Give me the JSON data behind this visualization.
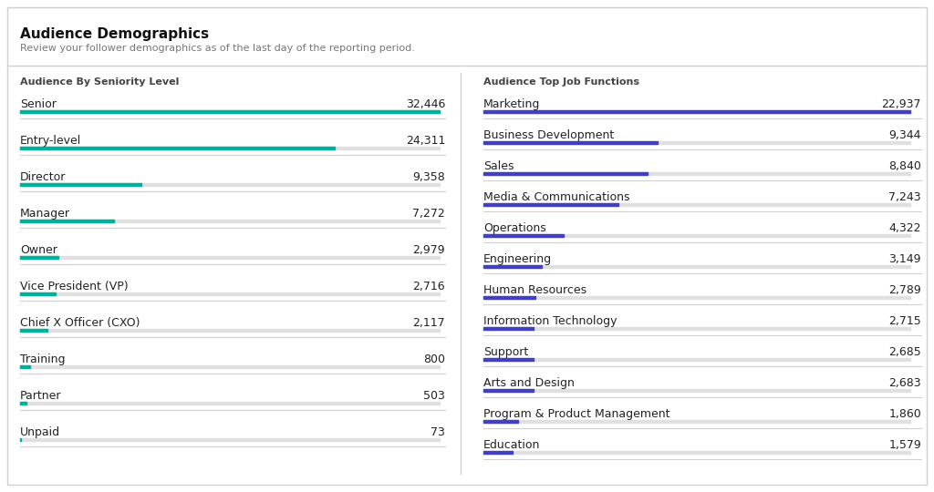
{
  "title": "Audience Demographics",
  "subtitle": "Review your follower demographics as of the last day of the reporting period.",
  "bg_color": "#ffffff",
  "border_color": "#d0d0d0",
  "left_section_title": "Audience By Seniority Level",
  "right_section_title": "Audience Top Job Functions",
  "left_bar_color": "#00b09b",
  "right_bar_color": "#4040c0",
  "bar_bg_color": "#e0e0e0",
  "label_color": "#222222",
  "value_color": "#222222",
  "section_title_color": "#444444",
  "title_color": "#111111",
  "subtitle_color": "#777777",
  "left_items": [
    {
      "label": "Senior",
      "value": 32446
    },
    {
      "label": "Entry-level",
      "value": 24311
    },
    {
      "label": "Director",
      "value": 9358
    },
    {
      "label": "Manager",
      "value": 7272
    },
    {
      "label": "Owner",
      "value": 2979
    },
    {
      "label": "Vice President (VP)",
      "value": 2716
    },
    {
      "label": "Chief X Officer (CXO)",
      "value": 2117
    },
    {
      "label": "Training",
      "value": 800
    },
    {
      "label": "Partner",
      "value": 503
    },
    {
      "label": "Unpaid",
      "value": 73
    }
  ],
  "right_items": [
    {
      "label": "Marketing",
      "value": 22937
    },
    {
      "label": "Business Development",
      "value": 9344
    },
    {
      "label": "Sales",
      "value": 8840
    },
    {
      "label": "Media & Communications",
      "value": 7243
    },
    {
      "label": "Operations",
      "value": 4322
    },
    {
      "label": "Engineering",
      "value": 3149
    },
    {
      "label": "Human Resources",
      "value": 2789
    },
    {
      "label": "Information Technology",
      "value": 2715
    },
    {
      "label": "Support",
      "value": 2685
    },
    {
      "label": "Arts and Design",
      "value": 2683
    },
    {
      "label": "Program & Product Management",
      "value": 1860
    },
    {
      "label": "Education",
      "value": 1579
    }
  ]
}
